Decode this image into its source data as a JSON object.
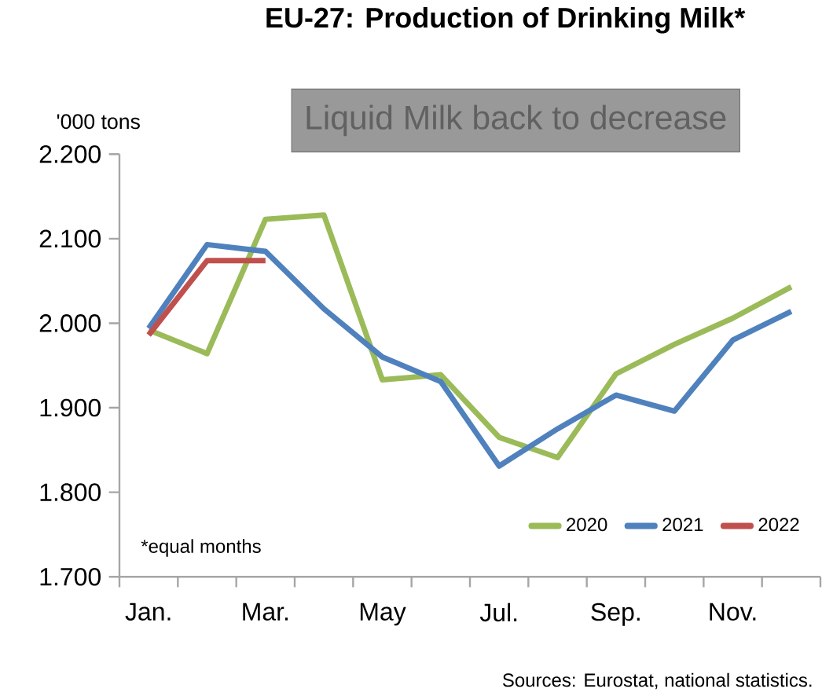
{
  "chart_data": {
    "type": "line",
    "title": "EU-27: Production of Drinking Milk*",
    "ylabel": "'000 tons",
    "categories": [
      "Jan.",
      null,
      "Mar.",
      null,
      "May",
      null,
      "Jul.",
      null,
      "Sep.",
      null,
      "Nov.",
      null
    ],
    "series": [
      {
        "name": "2020",
        "color": "#9bbb59",
        "values": [
          1992,
          1964,
          2123,
          2128,
          1933,
          1939,
          1865,
          1841,
          1940,
          1975,
          2006,
          2043
        ]
      },
      {
        "name": "2021",
        "color": "#4f81bd",
        "values": [
          1994,
          2093,
          2085,
          2017,
          1960,
          1931,
          1831,
          1875,
          1915,
          1896,
          1980,
          2014
        ]
      },
      {
        "name": "2022",
        "color": "#c0504d",
        "values": [
          1986,
          2074,
          2074,
          null,
          null,
          null,
          null,
          null,
          null,
          null,
          null,
          null
        ]
      }
    ],
    "ylim": [
      1700,
      2200
    ],
    "yticks": [
      {
        "value": 1700,
        "label": "1.700"
      },
      {
        "value": 1800,
        "label": "1.800"
      },
      {
        "value": 1900,
        "label": "1.900"
      },
      {
        "value": 2000,
        "label": "2.000"
      },
      {
        "value": 2100,
        "label": "2.100"
      },
      {
        "value": 2200,
        "label": "2.200"
      }
    ],
    "annotations": [
      "Liquid Milk back to decrease",
      "*equal months",
      "Sources: Eurostat, national statistics."
    ],
    "legend": "bottom",
    "grid": false,
    "marker": "none",
    "line_style": "solid"
  }
}
